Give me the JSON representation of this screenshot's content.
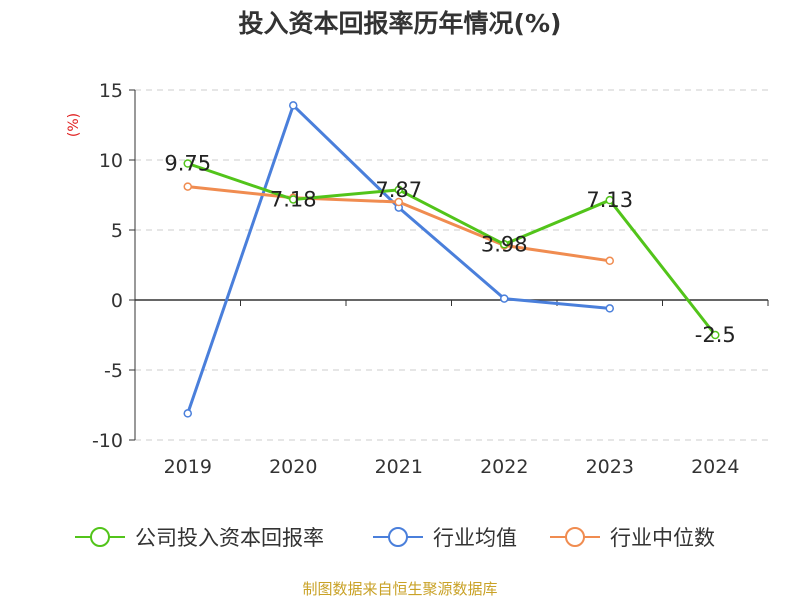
{
  "chart_data": {
    "type": "line",
    "title": "投入资本回报率历年情况(%)",
    "ylabel": "(%)",
    "xlabel": "",
    "categories": [
      "2019",
      "2020",
      "2021",
      "2022",
      "2023",
      "2024"
    ],
    "yticks": [
      "15",
      "10",
      "5",
      "0",
      "-5",
      "-10"
    ],
    "ylim": [
      -10,
      15
    ],
    "grid": "horizontal-dashed",
    "legend_position": "bottom",
    "series": [
      {
        "name": "公司投入资本回报率",
        "color": "#52c41a",
        "values": [
          9.75,
          7.18,
          7.87,
          3.98,
          7.13,
          -2.5
        ],
        "labels": [
          "9.75",
          "7.18",
          "7.87",
          "3.98",
          "7.13",
          "-2.5"
        ]
      },
      {
        "name": "行业均值",
        "color": "#4a7fdb",
        "values": [
          -8.1,
          13.9,
          6.6,
          0.1,
          -0.6,
          null
        ]
      },
      {
        "name": "行业中位数",
        "color": "#f08c50",
        "values": [
          8.1,
          7.3,
          7.0,
          3.9,
          2.8,
          null
        ]
      }
    ]
  },
  "footer": {
    "source": "制图数据来自恒生聚源数据库",
    "color": "#c9a227"
  }
}
